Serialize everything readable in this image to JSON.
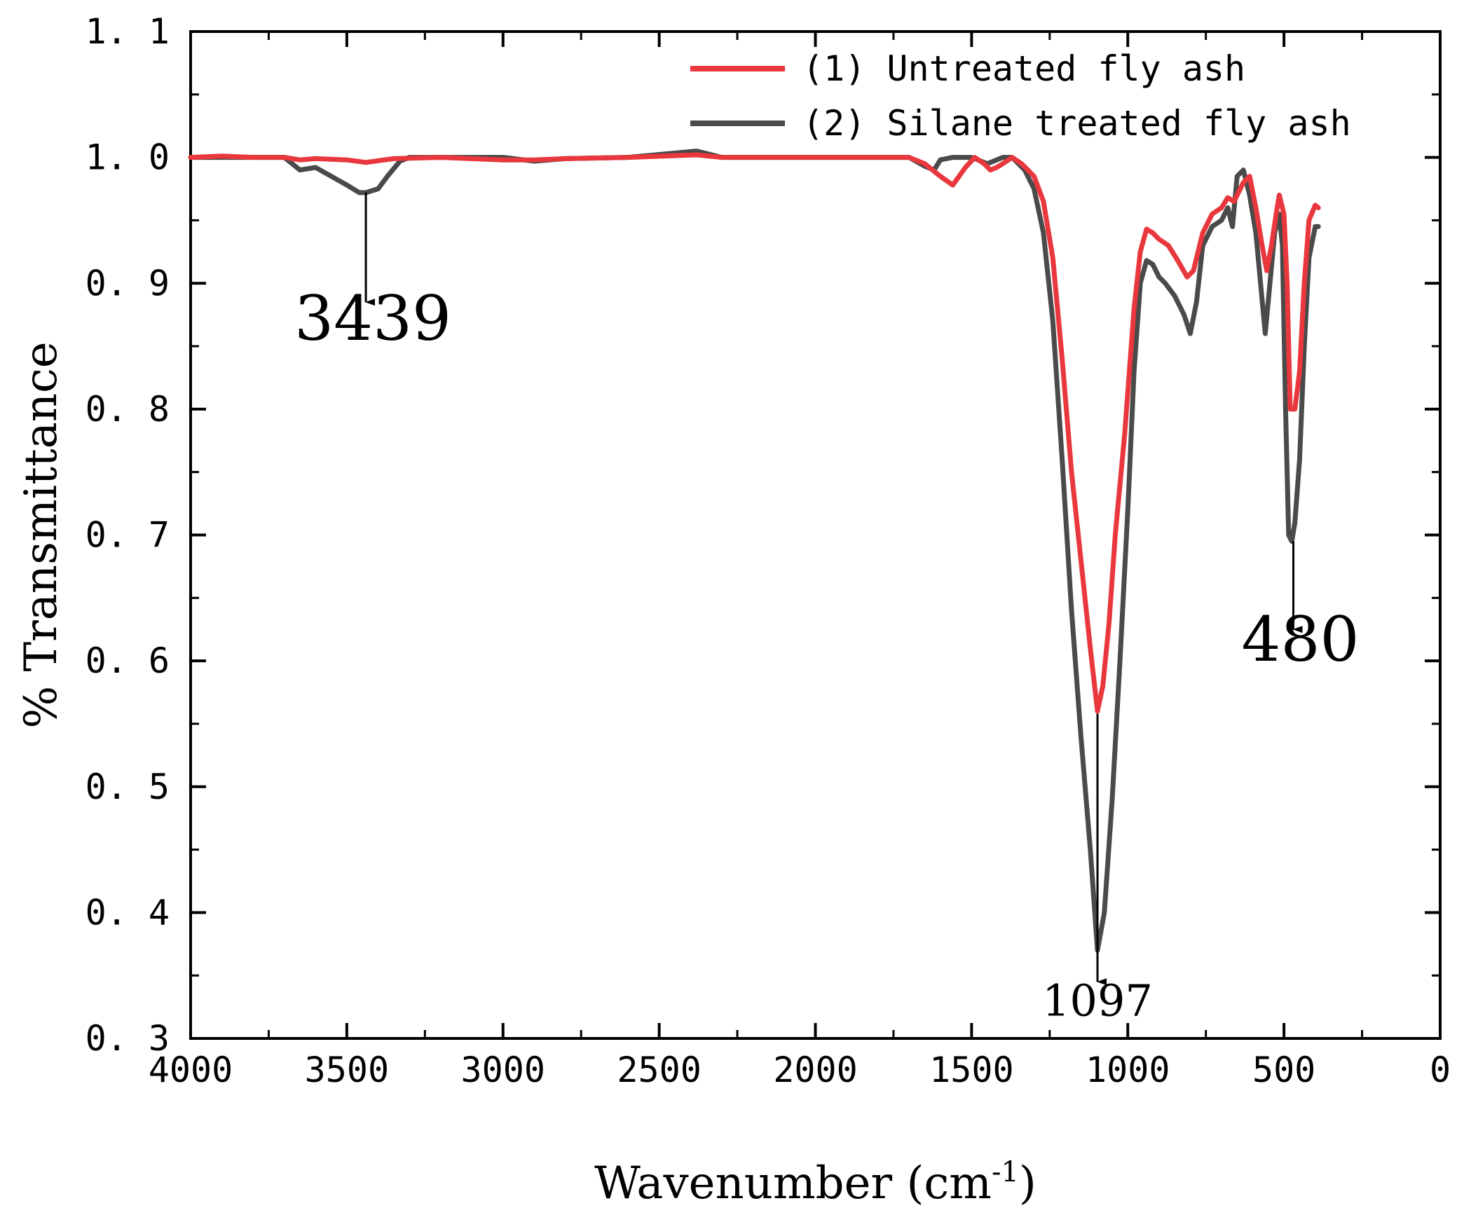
{
  "chart_data": {
    "type": "line",
    "xlabel": "Wavenumber (cm",
    "xlabel_sup": "-1",
    "xlabel_close": ")",
    "ylabel": "% Transmittance",
    "xlim": [
      4000,
      0
    ],
    "ylim": [
      0.3,
      1.1
    ],
    "x_ticks": [
      4000,
      3500,
      3000,
      2500,
      2000,
      1500,
      1000,
      500,
      0
    ],
    "x_tick_labels": [
      "4000",
      "3500",
      "3000",
      "2500",
      "2000",
      "1500",
      "1000",
      "500",
      "0"
    ],
    "y_ticks": [
      0.3,
      0.4,
      0.5,
      0.6,
      0.7,
      0.8,
      0.9,
      1.0,
      1.1
    ],
    "y_tick_labels": [
      "0. 3",
      "0. 4",
      "0. 5",
      "0. 6",
      "0. 7",
      "0. 8",
      "0. 9",
      "1. 0",
      "1. 1"
    ],
    "legend_position": "top-right",
    "series": [
      {
        "name": "(1) Untreated fly ash",
        "color": "#e8383d",
        "points": [
          [
            4000,
            1.0
          ],
          [
            3900,
            1.001
          ],
          [
            3800,
            1.0
          ],
          [
            3700,
            1.0
          ],
          [
            3650,
            0.998
          ],
          [
            3600,
            0.999
          ],
          [
            3500,
            0.998
          ],
          [
            3439,
            0.996
          ],
          [
            3350,
            0.999
          ],
          [
            3200,
            1.0
          ],
          [
            3000,
            0.998
          ],
          [
            2900,
            0.998
          ],
          [
            2800,
            0.999
          ],
          [
            2600,
            1.0
          ],
          [
            2380,
            1.002
          ],
          [
            2300,
            1.0
          ],
          [
            2000,
            1.0
          ],
          [
            1800,
            1.0
          ],
          [
            1700,
            1.0
          ],
          [
            1650,
            0.995
          ],
          [
            1600,
            0.985
          ],
          [
            1560,
            0.978
          ],
          [
            1520,
            0.992
          ],
          [
            1490,
            1.0
          ],
          [
            1460,
            0.995
          ],
          [
            1440,
            0.99
          ],
          [
            1420,
            0.992
          ],
          [
            1400,
            0.995
          ],
          [
            1370,
            1.0
          ],
          [
            1340,
            0.995
          ],
          [
            1300,
            0.985
          ],
          [
            1270,
            0.965
          ],
          [
            1240,
            0.92
          ],
          [
            1210,
            0.84
          ],
          [
            1180,
            0.75
          ],
          [
            1150,
            0.68
          ],
          [
            1120,
            0.61
          ],
          [
            1097,
            0.56
          ],
          [
            1080,
            0.58
          ],
          [
            1060,
            0.63
          ],
          [
            1040,
            0.7
          ],
          [
            1010,
            0.78
          ],
          [
            980,
            0.88
          ],
          [
            960,
            0.925
          ],
          [
            940,
            0.943
          ],
          [
            920,
            0.94
          ],
          [
            900,
            0.935
          ],
          [
            870,
            0.93
          ],
          [
            840,
            0.918
          ],
          [
            810,
            0.905
          ],
          [
            790,
            0.91
          ],
          [
            760,
            0.94
          ],
          [
            730,
            0.955
          ],
          [
            700,
            0.96
          ],
          [
            680,
            0.968
          ],
          [
            660,
            0.965
          ],
          [
            650,
            0.97
          ],
          [
            630,
            0.98
          ],
          [
            610,
            0.985
          ],
          [
            590,
            0.96
          ],
          [
            570,
            0.93
          ],
          [
            555,
            0.91
          ],
          [
            540,
            0.93
          ],
          [
            525,
            0.955
          ],
          [
            515,
            0.97
          ],
          [
            500,
            0.955
          ],
          [
            490,
            0.9
          ],
          [
            480,
            0.8
          ],
          [
            465,
            0.8
          ],
          [
            450,
            0.83
          ],
          [
            435,
            0.9
          ],
          [
            420,
            0.95
          ],
          [
            400,
            0.962
          ],
          [
            390,
            0.96
          ]
        ]
      },
      {
        "name": "(2) Silane treated fly ash",
        "color": "#4a4a4a",
        "points": [
          [
            4000,
            1.0
          ],
          [
            3900,
            1.0
          ],
          [
            3800,
            1.0
          ],
          [
            3700,
            1.0
          ],
          [
            3650,
            0.99
          ],
          [
            3600,
            0.992
          ],
          [
            3550,
            0.985
          ],
          [
            3500,
            0.978
          ],
          [
            3460,
            0.972
          ],
          [
            3439,
            0.972
          ],
          [
            3400,
            0.975
          ],
          [
            3370,
            0.985
          ],
          [
            3330,
            0.997
          ],
          [
            3300,
            1.0
          ],
          [
            3200,
            1.0
          ],
          [
            3000,
            1.0
          ],
          [
            2900,
            0.997
          ],
          [
            2800,
            0.999
          ],
          [
            2600,
            1.0
          ],
          [
            2380,
            1.005
          ],
          [
            2300,
            1.0
          ],
          [
            2000,
            1.0
          ],
          [
            1800,
            1.0
          ],
          [
            1700,
            1.0
          ],
          [
            1650,
            0.993
          ],
          [
            1620,
            0.99
          ],
          [
            1600,
            0.998
          ],
          [
            1560,
            1.0
          ],
          [
            1500,
            1.0
          ],
          [
            1450,
            0.995
          ],
          [
            1400,
            1.0
          ],
          [
            1370,
            1.0
          ],
          [
            1330,
            0.99
          ],
          [
            1300,
            0.975
          ],
          [
            1270,
            0.94
          ],
          [
            1240,
            0.87
          ],
          [
            1210,
            0.76
          ],
          [
            1180,
            0.64
          ],
          [
            1150,
            0.54
          ],
          [
            1120,
            0.45
          ],
          [
            1097,
            0.37
          ],
          [
            1075,
            0.4
          ],
          [
            1050,
            0.49
          ],
          [
            1025,
            0.6
          ],
          [
            1000,
            0.72
          ],
          [
            980,
            0.83
          ],
          [
            960,
            0.9
          ],
          [
            940,
            0.918
          ],
          [
            920,
            0.915
          ],
          [
            900,
            0.905
          ],
          [
            880,
            0.9
          ],
          [
            850,
            0.89
          ],
          [
            820,
            0.875
          ],
          [
            800,
            0.86
          ],
          [
            780,
            0.885
          ],
          [
            760,
            0.93
          ],
          [
            730,
            0.945
          ],
          [
            700,
            0.95
          ],
          [
            680,
            0.96
          ],
          [
            665,
            0.945
          ],
          [
            650,
            0.985
          ],
          [
            630,
            0.99
          ],
          [
            610,
            0.97
          ],
          [
            590,
            0.94
          ],
          [
            575,
            0.9
          ],
          [
            560,
            0.86
          ],
          [
            545,
            0.9
          ],
          [
            530,
            0.94
          ],
          [
            515,
            0.955
          ],
          [
            505,
            0.93
          ],
          [
            495,
            0.8
          ],
          [
            485,
            0.7
          ],
          [
            475,
            0.695
          ],
          [
            465,
            0.71
          ],
          [
            450,
            0.76
          ],
          [
            435,
            0.85
          ],
          [
            420,
            0.92
          ],
          [
            400,
            0.945
          ],
          [
            390,
            0.945
          ]
        ]
      }
    ],
    "annotations": [
      {
        "text": "3439",
        "x": 3439,
        "y_from": 0.972,
        "y_to": 0.885,
        "text_y": 0.855,
        "size": "large"
      },
      {
        "text": "1097",
        "x": 1097,
        "y_from": 0.558,
        "y_to": 0.345,
        "text_y": 0.318,
        "size": "small"
      },
      {
        "text": "480",
        "x": 470,
        "y_from": 0.695,
        "y_to": 0.625,
        "text_y": 0.6,
        "size": "large"
      }
    ]
  }
}
